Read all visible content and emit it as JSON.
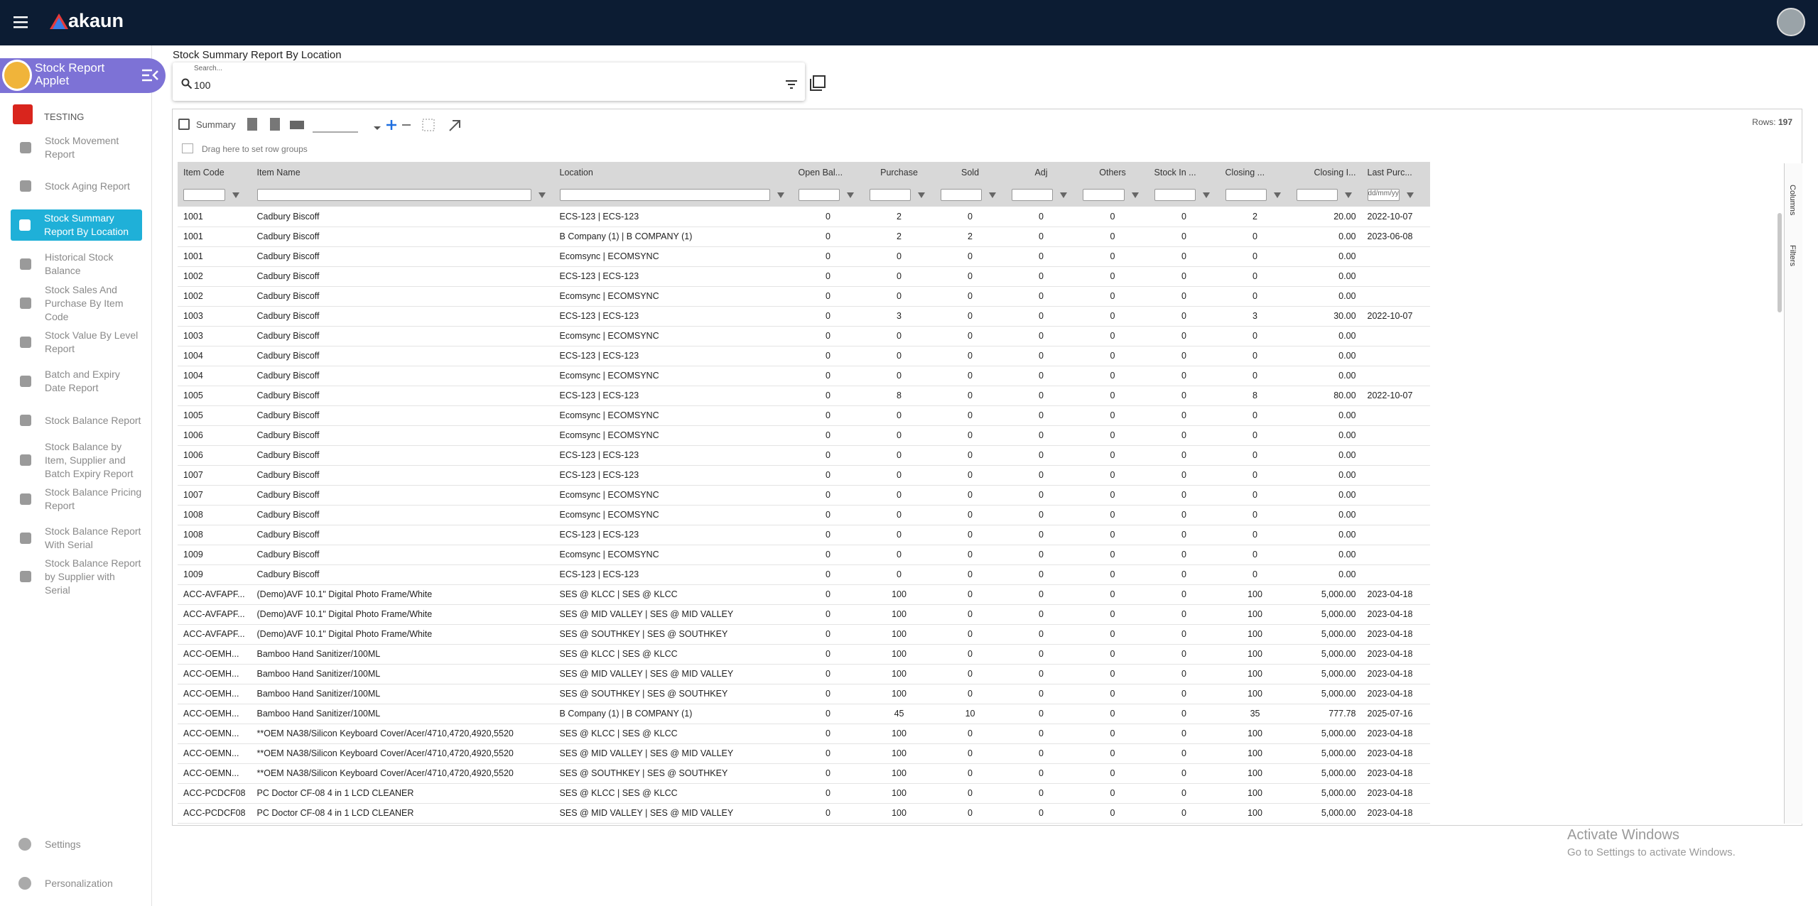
{
  "header": {
    "brand": "akaun"
  },
  "sidebar": {
    "applet_title": "Stock Report Applet",
    "section": "TESTING",
    "menu": [
      "Stock Movement Report",
      "Stock Aging Report",
      "Stock Summary Report By Location",
      "Historical Stock Balance",
      "Stock Sales And Purchase By Item Code",
      "Stock Value By Level Report",
      "Batch and Expiry Date Report",
      "Stock Balance Report",
      "Stock Balance by Item, Supplier and Batch Expiry Report",
      "Stock Balance Pricing Report",
      "Stock Balance Report With Serial",
      "Stock Balance Report by Supplier with Serial"
    ],
    "footer": [
      "Settings",
      "Personalization"
    ]
  },
  "page": {
    "title": "Stock Summary Report By Location",
    "search_label": "Search...",
    "search_value": "100"
  },
  "toolbar": {
    "summary": "Summary",
    "rows_label": "Rows:",
    "rows_value": "197",
    "group_hint": "Drag here to set row groups"
  },
  "table": {
    "columns": [
      "Item Code",
      "Item Name",
      "Location",
      "Open Bal...",
      "Purchase",
      "Sold",
      "Adj",
      "Others",
      "Stock In ...",
      "Closing ...",
      "Closing I...",
      "Last Purc..."
    ],
    "date_placeholder": "dd/mm/yyyy",
    "rows": [
      [
        "1001",
        "Cadbury Biscoff",
        "ECS-123 | ECS-123",
        "0",
        "2",
        "0",
        "0",
        "0",
        "0",
        "2",
        "20.00",
        "2022-10-07"
      ],
      [
        "1001",
        "Cadbury Biscoff",
        "B Company (1) | B COMPANY (1)",
        "0",
        "2",
        "2",
        "0",
        "0",
        "0",
        "0",
        "0.00",
        "2023-06-08"
      ],
      [
        "1001",
        "Cadbury Biscoff",
        "Ecomsync | ECOMSYNC",
        "0",
        "0",
        "0",
        "0",
        "0",
        "0",
        "0",
        "0.00",
        null
      ],
      [
        "1002",
        "Cadbury Biscoff",
        "ECS-123 | ECS-123",
        "0",
        "0",
        "0",
        "0",
        "0",
        "0",
        "0",
        "0.00",
        null
      ],
      [
        "1002",
        "Cadbury Biscoff",
        "Ecomsync | ECOMSYNC",
        "0",
        "0",
        "0",
        "0",
        "0",
        "0",
        "0",
        "0.00",
        null
      ],
      [
        "1003",
        "Cadbury Biscoff",
        "ECS-123 | ECS-123",
        "0",
        "3",
        "0",
        "0",
        "0",
        "0",
        "3",
        "30.00",
        "2022-10-07"
      ],
      [
        "1003",
        "Cadbury Biscoff",
        "Ecomsync | ECOMSYNC",
        "0",
        "0",
        "0",
        "0",
        "0",
        "0",
        "0",
        "0.00",
        null
      ],
      [
        "1004",
        "Cadbury Biscoff",
        "ECS-123 | ECS-123",
        "0",
        "0",
        "0",
        "0",
        "0",
        "0",
        "0",
        "0.00",
        null
      ],
      [
        "1004",
        "Cadbury Biscoff",
        "Ecomsync | ECOMSYNC",
        "0",
        "0",
        "0",
        "0",
        "0",
        "0",
        "0",
        "0.00",
        null
      ],
      [
        "1005",
        "Cadbury Biscoff",
        "ECS-123 | ECS-123",
        "0",
        "8",
        "0",
        "0",
        "0",
        "0",
        "8",
        "80.00",
        "2022-10-07"
      ],
      [
        "1005",
        "Cadbury Biscoff",
        "Ecomsync | ECOMSYNC",
        "0",
        "0",
        "0",
        "0",
        "0",
        "0",
        "0",
        "0.00",
        null
      ],
      [
        "1006",
        "Cadbury Biscoff",
        "Ecomsync | ECOMSYNC",
        "0",
        "0",
        "0",
        "0",
        "0",
        "0",
        "0",
        "0.00",
        null
      ],
      [
        "1006",
        "Cadbury Biscoff",
        "ECS-123 | ECS-123",
        "0",
        "0",
        "0",
        "0",
        "0",
        "0",
        "0",
        "0.00",
        null
      ],
      [
        "1007",
        "Cadbury Biscoff",
        "ECS-123 | ECS-123",
        "0",
        "0",
        "0",
        "0",
        "0",
        "0",
        "0",
        "0.00",
        null
      ],
      [
        "1007",
        "Cadbury Biscoff",
        "Ecomsync | ECOMSYNC",
        "0",
        "0",
        "0",
        "0",
        "0",
        "0",
        "0",
        "0.00",
        null
      ],
      [
        "1008",
        "Cadbury Biscoff",
        "Ecomsync | ECOMSYNC",
        "0",
        "0",
        "0",
        "0",
        "0",
        "0",
        "0",
        "0.00",
        null
      ],
      [
        "1008",
        "Cadbury Biscoff",
        "ECS-123 | ECS-123",
        "0",
        "0",
        "0",
        "0",
        "0",
        "0",
        "0",
        "0.00",
        null
      ],
      [
        "1009",
        "Cadbury Biscoff",
        "Ecomsync | ECOMSYNC",
        "0",
        "0",
        "0",
        "0",
        "0",
        "0",
        "0",
        "0.00",
        null
      ],
      [
        "1009",
        "Cadbury Biscoff",
        "ECS-123 | ECS-123",
        "0",
        "0",
        "0",
        "0",
        "0",
        "0",
        "0",
        "0.00",
        null
      ],
      [
        "ACC-AVFAPF...",
        "(Demo)AVF 10.1\" Digital Photo Frame/White",
        "SES @ KLCC | SES @ KLCC",
        "0",
        "100",
        "0",
        "0",
        "0",
        "0",
        "100",
        "5,000.00",
        "2023-04-18"
      ],
      [
        "ACC-AVFAPF...",
        "(Demo)AVF 10.1\" Digital Photo Frame/White",
        "SES @ MID VALLEY | SES @ MID VALLEY",
        "0",
        "100",
        "0",
        "0",
        "0",
        "0",
        "100",
        "5,000.00",
        "2023-04-18"
      ],
      [
        "ACC-AVFAPF...",
        "(Demo)AVF 10.1\" Digital Photo Frame/White",
        "SES @ SOUTHKEY | SES @ SOUTHKEY",
        "0",
        "100",
        "0",
        "0",
        "0",
        "0",
        "100",
        "5,000.00",
        "2023-04-18"
      ],
      [
        "ACC-OEMH...",
        "Bamboo Hand Sanitizer/100ML",
        "SES @ KLCC | SES @ KLCC",
        "0",
        "100",
        "0",
        "0",
        "0",
        "0",
        "100",
        "5,000.00",
        "2023-04-18"
      ],
      [
        "ACC-OEMH...",
        "Bamboo Hand Sanitizer/100ML",
        "SES @ MID VALLEY | SES @ MID VALLEY",
        "0",
        "100",
        "0",
        "0",
        "0",
        "0",
        "100",
        "5,000.00",
        "2023-04-18"
      ],
      [
        "ACC-OEMH...",
        "Bamboo Hand Sanitizer/100ML",
        "SES @ SOUTHKEY | SES @ SOUTHKEY",
        "0",
        "100",
        "0",
        "0",
        "0",
        "0",
        "100",
        "5,000.00",
        "2023-04-18"
      ],
      [
        "ACC-OEMH...",
        "Bamboo Hand Sanitizer/100ML",
        "B Company (1) | B COMPANY (1)",
        "0",
        "45",
        "10",
        "0",
        "0",
        "0",
        "35",
        "777.78",
        "2025-07-16"
      ],
      [
        "ACC-OEMN...",
        "**OEM NA38/Silicon Keyboard Cover/Acer/4710,4720,4920,5520",
        "SES @ KLCC | SES @ KLCC",
        "0",
        "100",
        "0",
        "0",
        "0",
        "0",
        "100",
        "5,000.00",
        "2023-04-18"
      ],
      [
        "ACC-OEMN...",
        "**OEM NA38/Silicon Keyboard Cover/Acer/4710,4720,4920,5520",
        "SES @ MID VALLEY | SES @ MID VALLEY",
        "0",
        "100",
        "0",
        "0",
        "0",
        "0",
        "100",
        "5,000.00",
        "2023-04-18"
      ],
      [
        "ACC-OEMN...",
        "**OEM NA38/Silicon Keyboard Cover/Acer/4710,4720,4920,5520",
        "SES @ SOUTHKEY | SES @ SOUTHKEY",
        "0",
        "100",
        "0",
        "0",
        "0",
        "0",
        "100",
        "5,000.00",
        "2023-04-18"
      ],
      [
        "ACC-PCDCF08",
        "PC Doctor CF-08 4 in 1 LCD CLEANER",
        "SES @ KLCC | SES @ KLCC",
        "0",
        "100",
        "0",
        "0",
        "0",
        "0",
        "100",
        "5,000.00",
        "2023-04-18"
      ],
      [
        "ACC-PCDCF08",
        "PC Doctor CF-08 4 in 1 LCD CLEANER",
        "SES @ MID VALLEY | SES @ MID VALLEY",
        "0",
        "100",
        "0",
        "0",
        "0",
        "0",
        "100",
        "5,000.00",
        "2023-04-18"
      ]
    ]
  },
  "side_tabs": [
    "Columns",
    "Filters"
  ],
  "watermark": {
    "title": "Activate Windows",
    "subtitle": "Go to Settings to activate Windows."
  }
}
